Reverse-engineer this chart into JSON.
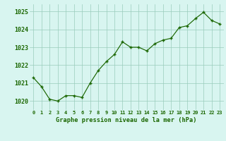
{
  "x": [
    0,
    1,
    2,
    3,
    4,
    5,
    6,
    7,
    8,
    9,
    10,
    11,
    12,
    13,
    14,
    15,
    16,
    17,
    18,
    19,
    20,
    21,
    22,
    23
  ],
  "y": [
    1021.3,
    1020.8,
    1020.1,
    1020.0,
    1020.3,
    1020.3,
    1020.2,
    1021.0,
    1021.7,
    1022.2,
    1022.6,
    1023.3,
    1023.0,
    1023.0,
    1022.8,
    1023.2,
    1023.4,
    1023.5,
    1024.1,
    1024.2,
    1024.6,
    1024.95,
    1024.5,
    1024.3
  ],
  "line_color": "#1a6600",
  "marker_color": "#1a6600",
  "bg_color": "#d8f5f0",
  "grid_color": "#99ccbb",
  "xlabel": "Graphe pression niveau de la mer (hPa)",
  "xlabel_color": "#1a6600",
  "yticks": [
    1020,
    1021,
    1022,
    1023,
    1024,
    1025
  ],
  "ylim": [
    1019.5,
    1025.4
  ],
  "xlim": [
    -0.5,
    23.5
  ],
  "xtick_labels": [
    "0",
    "1",
    "2",
    "3",
    "4",
    "5",
    "6",
    "7",
    "8",
    "9",
    "10",
    "11",
    "12",
    "13",
    "14",
    "15",
    "16",
    "17",
    "18",
    "19",
    "20",
    "21",
    "22",
    "23"
  ]
}
